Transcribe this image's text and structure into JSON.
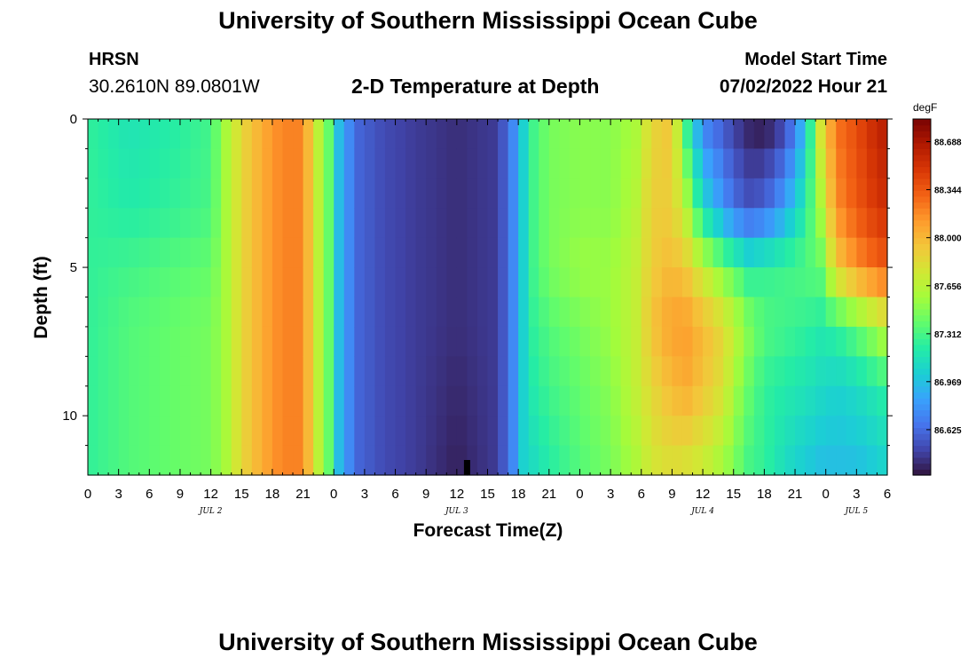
{
  "page": {
    "title": "University of Southern Mississippi Ocean Cube",
    "title_repeat": "University of Southern Mississippi Ocean Cube",
    "station": "HRSN",
    "coords": "30.2610N  89.0801W",
    "subtitle": "2-D Temperature at Depth",
    "start_label": "Model Start Time",
    "start_value": "07/02/2022 Hour 21"
  },
  "colors": {
    "scale": [
      "#30123b",
      "#4145ab",
      "#4675ed",
      "#39a2fc",
      "#1bcfd4",
      "#24eca6",
      "#61fc6c",
      "#a4fc3b",
      "#d1e834",
      "#f3c63a",
      "#fe9b2d",
      "#f36315",
      "#d93806",
      "#b11901",
      "#7a0403"
    ]
  },
  "chart_data": {
    "type": "heatmap",
    "title": "2-D Temperature at Depth",
    "xlabel": "Forecast Time(Z)",
    "ylabel": "Depth (ft)",
    "x_unit": "hours since JUL 2 00Z",
    "x_range": [
      0,
      78
    ],
    "x_ticks": [
      {
        "v": 0,
        "label": "0"
      },
      {
        "v": 3,
        "label": "3"
      },
      {
        "v": 6,
        "label": "6"
      },
      {
        "v": 9,
        "label": "9"
      },
      {
        "v": 12,
        "label": "12"
      },
      {
        "v": 15,
        "label": "15"
      },
      {
        "v": 18,
        "label": "18"
      },
      {
        "v": 21,
        "label": "21"
      },
      {
        "v": 24,
        "label": "0"
      },
      {
        "v": 27,
        "label": "3"
      },
      {
        "v": 30,
        "label": "6"
      },
      {
        "v": 33,
        "label": "9"
      },
      {
        "v": 36,
        "label": "12"
      },
      {
        "v": 39,
        "label": "15"
      },
      {
        "v": 42,
        "label": "18"
      },
      {
        "v": 45,
        "label": "21"
      },
      {
        "v": 48,
        "label": "0"
      },
      {
        "v": 51,
        "label": "3"
      },
      {
        "v": 54,
        "label": "6"
      },
      {
        "v": 57,
        "label": "9"
      },
      {
        "v": 60,
        "label": "12"
      },
      {
        "v": 63,
        "label": "15"
      },
      {
        "v": 66,
        "label": "18"
      },
      {
        "v": 69,
        "label": "21"
      },
      {
        "v": 72,
        "label": "0"
      },
      {
        "v": 75,
        "label": "3"
      },
      {
        "v": 78,
        "label": "6"
      }
    ],
    "day_labels": [
      {
        "v": 12,
        "label": "JUL 2"
      },
      {
        "v": 36,
        "label": "JUL 3"
      },
      {
        "v": 60,
        "label": "JUL 4"
      },
      {
        "v": 75,
        "label": "JUL 5"
      }
    ],
    "y_range": [
      0,
      12
    ],
    "y_ticks": [
      0,
      5,
      10
    ],
    "colorbar": {
      "unit": "degF",
      "min": 86.3,
      "max": 88.85,
      "ticks": [
        86.625,
        86.969,
        87.312,
        87.656,
        88.0,
        88.344,
        88.688
      ],
      "tick_labels": [
        "86.625",
        "86.969",
        "87.312",
        "87.656",
        "88.000",
        "88.344",
        "88.688"
      ]
    },
    "profile_hours": [
      0,
      4,
      8,
      12,
      13.5,
      15,
      17,
      19,
      21,
      22,
      23.5,
      24.5,
      25.5,
      26.5,
      29,
      32,
      36,
      40,
      41.5,
      42.5,
      43.5,
      45,
      48,
      51,
      53.5,
      55,
      57,
      58.5,
      60,
      62,
      63,
      64.5,
      66,
      68,
      70,
      71.5,
      73,
      75,
      77,
      78
    ],
    "profile_depths": [
      0,
      3,
      5,
      7,
      9,
      12
    ],
    "profile_degF": [
      [
        87.25,
        87.25,
        87.25,
        87.25,
        87.25,
        87.25
      ],
      [
        87.15,
        87.2,
        87.3,
        87.35,
        87.35,
        87.35
      ],
      [
        87.2,
        87.25,
        87.35,
        87.4,
        87.4,
        87.4
      ],
      [
        87.3,
        87.32,
        87.4,
        87.45,
        87.45,
        87.45
      ],
      [
        87.6,
        87.6,
        87.6,
        87.6,
        87.6,
        87.6
      ],
      [
        87.85,
        87.85,
        87.85,
        87.85,
        87.85,
        87.85
      ],
      [
        88.05,
        88.05,
        88.05,
        88.05,
        88.05,
        88.05
      ],
      [
        88.2,
        88.2,
        88.2,
        88.2,
        88.2,
        88.2
      ],
      [
        88.2,
        88.2,
        88.2,
        88.2,
        88.2,
        88.2
      ],
      [
        87.8,
        87.8,
        87.8,
        87.8,
        87.8,
        87.8
      ],
      [
        87.4,
        87.4,
        87.4,
        87.4,
        87.4,
        87.4
      ],
      [
        86.95,
        86.95,
        86.95,
        86.95,
        86.95,
        86.95
      ],
      [
        86.75,
        86.75,
        86.75,
        86.75,
        86.75,
        86.75
      ],
      [
        86.6,
        86.6,
        86.6,
        86.6,
        86.6,
        86.6
      ],
      [
        86.5,
        86.5,
        86.5,
        86.5,
        86.5,
        86.5
      ],
      [
        86.45,
        86.45,
        86.45,
        86.45,
        86.45,
        86.45
      ],
      [
        86.4,
        86.4,
        86.4,
        86.4,
        86.38,
        86.35
      ],
      [
        86.45,
        86.45,
        86.45,
        86.45,
        86.45,
        86.45
      ],
      [
        86.75,
        86.75,
        86.75,
        86.75,
        86.75,
        86.75
      ],
      [
        87.05,
        87.05,
        87.05,
        87.05,
        87.05,
        87.05
      ],
      [
        87.3,
        87.3,
        87.3,
        87.25,
        87.2,
        87.1
      ],
      [
        87.45,
        87.45,
        87.45,
        87.35,
        87.3,
        87.2
      ],
      [
        87.5,
        87.5,
        87.55,
        87.45,
        87.4,
        87.35
      ],
      [
        87.5,
        87.5,
        87.55,
        87.55,
        87.5,
        87.45
      ],
      [
        87.6,
        87.65,
        87.7,
        87.7,
        87.7,
        87.6
      ],
      [
        87.85,
        87.9,
        87.9,
        87.95,
        87.85,
        87.75
      ],
      [
        87.95,
        87.9,
        88.0,
        88.1,
        88.0,
        87.8
      ],
      [
        87.2,
        87.6,
        87.9,
        88.1,
        88.05,
        87.75
      ],
      [
        86.7,
        87.1,
        87.7,
        88.0,
        87.95,
        87.7
      ],
      [
        86.55,
        86.8,
        87.45,
        87.85,
        87.8,
        87.55
      ],
      [
        86.45,
        86.65,
        87.35,
        87.7,
        87.6,
        87.45
      ],
      [
        86.35,
        86.55,
        87.2,
        87.5,
        87.4,
        87.3
      ],
      [
        86.3,
        86.6,
        87.25,
        87.35,
        87.25,
        87.25
      ],
      [
        86.45,
        86.85,
        87.3,
        87.3,
        87.2,
        87.1
      ],
      [
        86.95,
        87.2,
        87.35,
        87.25,
        87.15,
        87.0
      ],
      [
        87.8,
        87.6,
        87.4,
        87.2,
        87.1,
        86.95
      ],
      [
        88.25,
        88.15,
        87.9,
        87.25,
        87.05,
        86.95
      ],
      [
        88.4,
        88.35,
        88.15,
        87.4,
        87.1,
        86.95
      ],
      [
        88.6,
        88.5,
        88.3,
        87.6,
        87.2,
        87.0
      ],
      [
        88.65,
        88.55,
        88.35,
        87.7,
        87.25,
        87.05
      ]
    ]
  }
}
